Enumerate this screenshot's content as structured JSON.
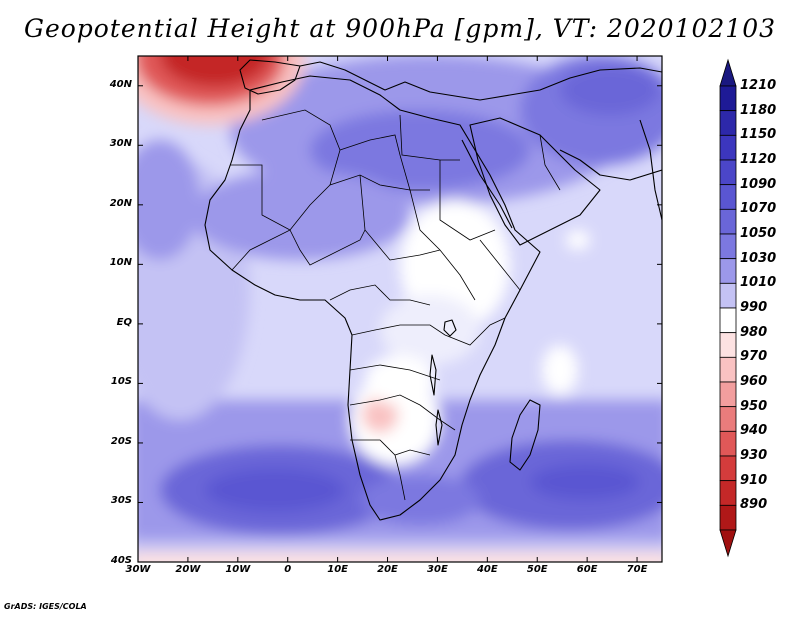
{
  "title": "Geopotential Height at 900hPa [gpm], VT: 2020102103",
  "footer": "GrADS: IGES/COLA",
  "map": {
    "variable": "Geopotential Height",
    "level": "900hPa",
    "units": "gpm",
    "valid_time": "2020102103",
    "lon_range": [
      -30,
      75
    ],
    "lat_range": [
      -40,
      45
    ],
    "lat_ticks": [
      {
        "value": 40,
        "label": "40N"
      },
      {
        "value": 30,
        "label": "30N"
      },
      {
        "value": 20,
        "label": "20N"
      },
      {
        "value": 10,
        "label": "10N"
      },
      {
        "value": 0,
        "label": "EQ"
      },
      {
        "value": -10,
        "label": "10S"
      },
      {
        "value": -20,
        "label": "20S"
      },
      {
        "value": -30,
        "label": "30S"
      },
      {
        "value": -40,
        "label": "40S"
      }
    ],
    "lon_ticks": [
      {
        "value": -30,
        "label": "30W"
      },
      {
        "value": -20,
        "label": "20W"
      },
      {
        "value": -10,
        "label": "10W"
      },
      {
        "value": 0,
        "label": "0"
      },
      {
        "value": 10,
        "label": "10E"
      },
      {
        "value": 20,
        "label": "20E"
      },
      {
        "value": 30,
        "label": "30E"
      },
      {
        "value": 40,
        "label": "40E"
      },
      {
        "value": 50,
        "label": "50E"
      },
      {
        "value": 60,
        "label": "60E"
      },
      {
        "value": 70,
        "label": "70E"
      }
    ]
  },
  "colorbar": {
    "levels": [
      {
        "label": "1210",
        "color": "#1e1a96"
      },
      {
        "label": "1180",
        "color": "#2d28aa"
      },
      {
        "label": "1150",
        "color": "#3c36be"
      },
      {
        "label": "1120",
        "color": "#4b46c8"
      },
      {
        "label": "1090",
        "color": "#5a56d2"
      },
      {
        "label": "1070",
        "color": "#6a66d8"
      },
      {
        "label": "1050",
        "color": "#7c78e0"
      },
      {
        "label": "1030",
        "color": "#9c98ea"
      },
      {
        "label": "1010",
        "color": "#c4c2f4"
      },
      {
        "label": "990",
        "color": "#ffffff"
      },
      {
        "label": "980",
        "color": "#fde2e2"
      },
      {
        "label": "970",
        "color": "#f9c2c2"
      },
      {
        "label": "960",
        "color": "#f29e9e"
      },
      {
        "label": "950",
        "color": "#ea7c7c"
      },
      {
        "label": "940",
        "color": "#e05858"
      },
      {
        "label": "930",
        "color": "#d43c3c"
      },
      {
        "label": "910",
        "color": "#c42828"
      },
      {
        "label": "890",
        "color": "#b01818"
      }
    ],
    "top_arrow_color": "#1a1880",
    "bottom_arrow_color": "#a01010"
  }
}
